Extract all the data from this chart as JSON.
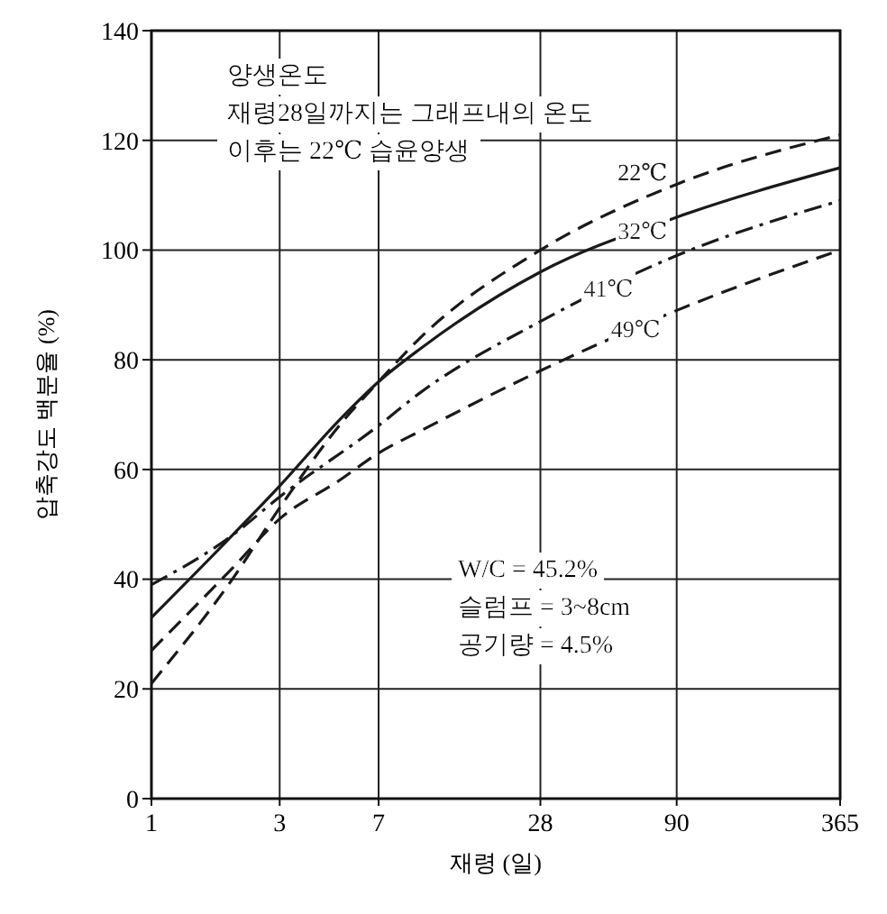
{
  "chart_data": {
    "type": "line",
    "xlabel": "재령 (일)",
    "ylabel": "압축강도 백분율 (%)",
    "log": "x",
    "xlim": [
      1,
      365
    ],
    "xticks": [
      1,
      3,
      7,
      28,
      90,
      365
    ],
    "ylim": [
      0,
      140
    ],
    "yticks": [
      0,
      20,
      40,
      60,
      80,
      100,
      120,
      140
    ],
    "grid": true,
    "legend": false,
    "marker": "none",
    "annotations": [
      "양생온도",
      "재령28일까지는 그래프내의 온도",
      "이후는 22℃ 습윤양생",
      "W/C = 45.2%",
      "슬럼프 = 3~8cm",
      "공기량 = 4.5%"
    ],
    "series": [
      {
        "name": "22℃",
        "color": "#1a1a1a",
        "line_style": "dashed",
        "x": [
          1,
          2,
          3,
          5,
          7,
          10,
          28,
          90,
          365
        ],
        "values": [
          21,
          40,
          53,
          68,
          76,
          84,
          100,
          112,
          121
        ]
      },
      {
        "name": "32℃",
        "color": "#1a1a1a",
        "line_style": "solid",
        "x": [
          1,
          2,
          3,
          5,
          7,
          10,
          28,
          90,
          365
        ],
        "values": [
          33,
          48,
          57,
          69,
          76,
          82,
          96,
          106,
          115
        ]
      },
      {
        "name": "41℃",
        "color": "#1a1a1a",
        "line_style": "dashdot",
        "x": [
          1,
          2,
          3,
          7,
          10,
          28,
          90,
          365
        ],
        "values": [
          39,
          48,
          55,
          68,
          74,
          87,
          99,
          109
        ]
      },
      {
        "name": "49℃",
        "color": "#1a1a1a",
        "line_style": "dashed",
        "x": [
          1,
          2,
          3,
          5,
          7,
          10,
          28,
          90,
          365
        ],
        "values": [
          27,
          42,
          51,
          58,
          63,
          67,
          78,
          89,
          100
        ]
      }
    ]
  }
}
